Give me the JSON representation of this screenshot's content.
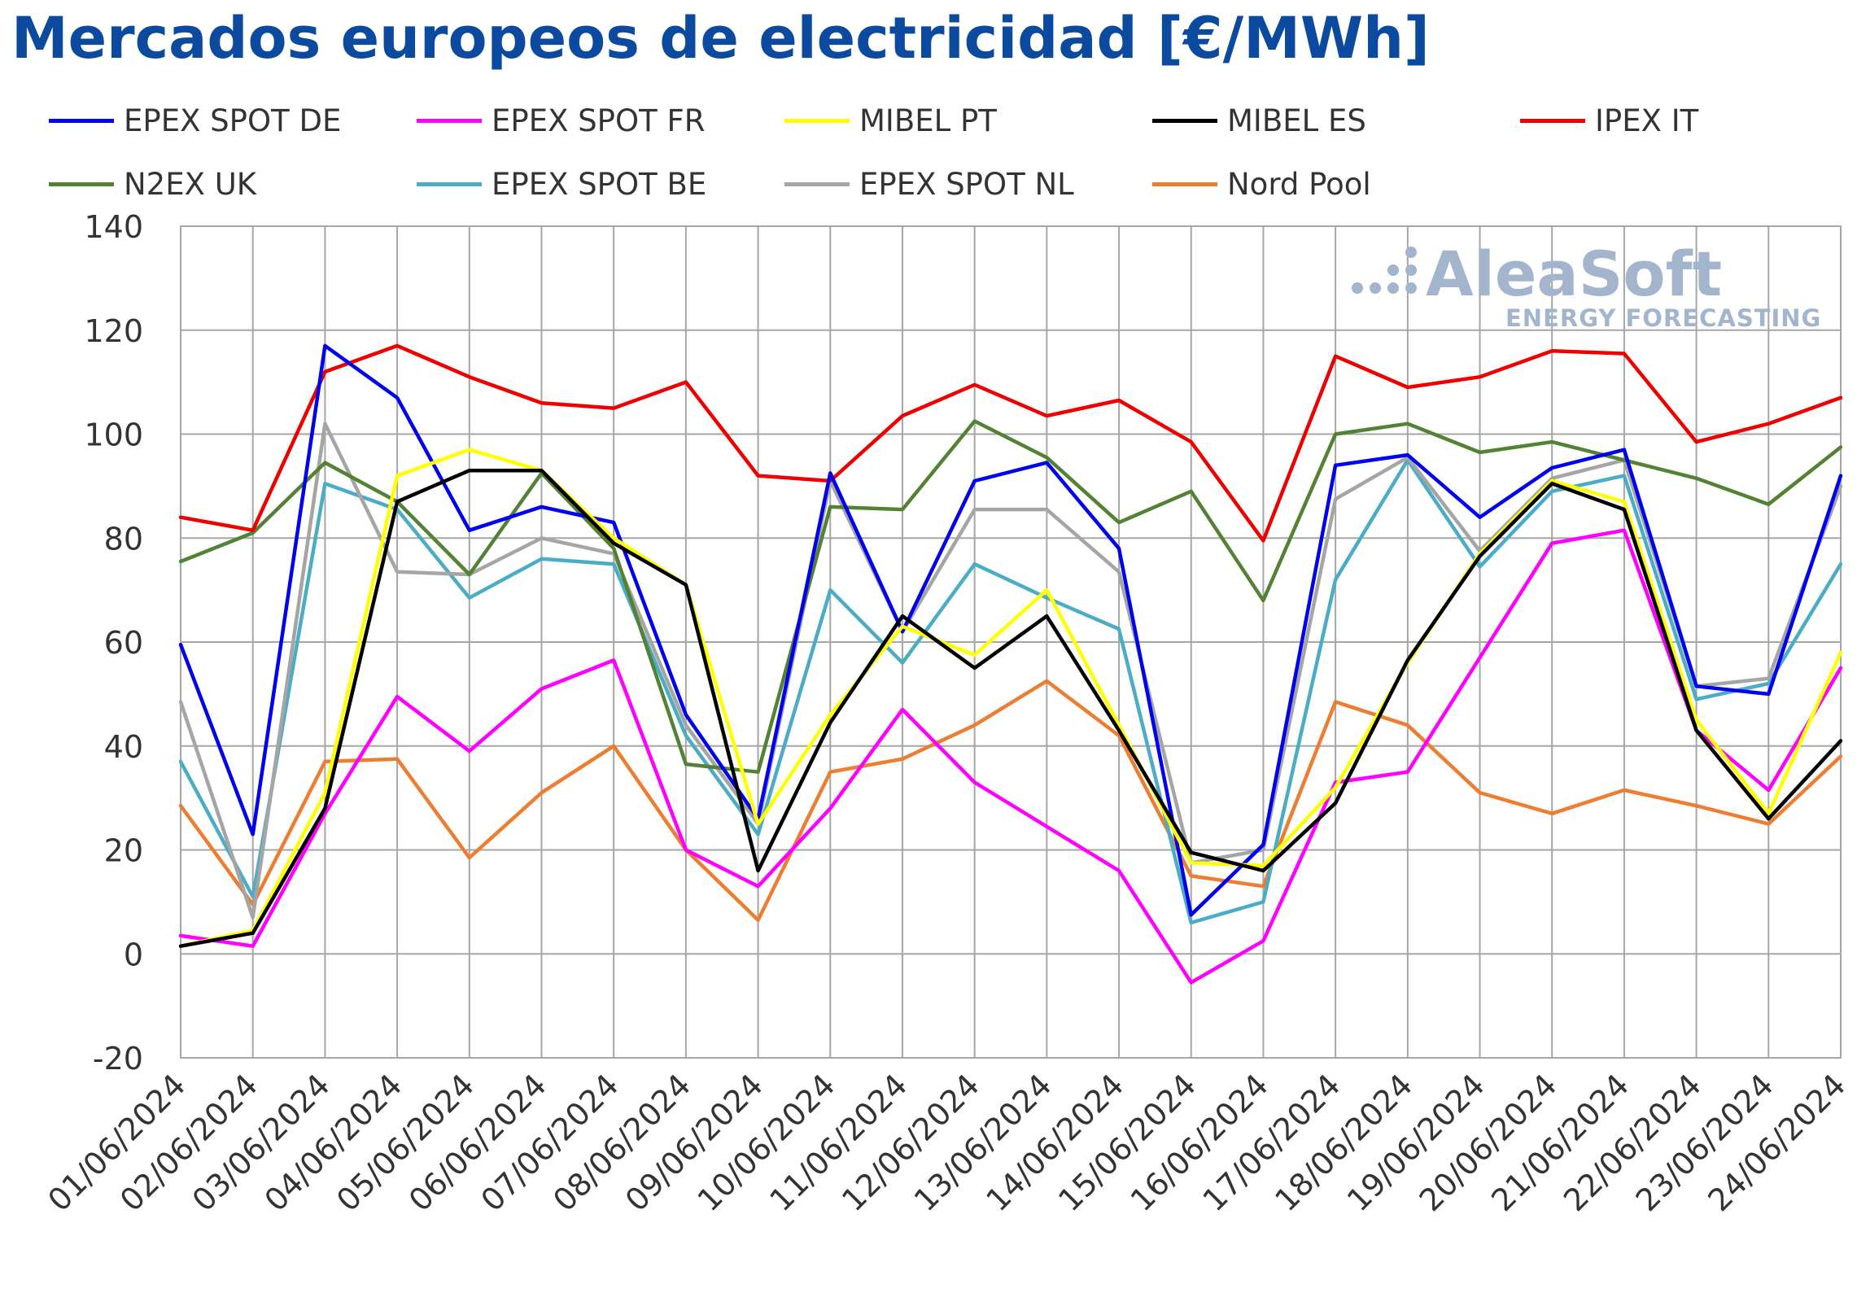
{
  "title": "Mercados europeos de electricidad [€/MWh]",
  "branding": {
    "logo_name": "AleaSoft",
    "logo_tagline": "ENERGY FORECASTING"
  },
  "chart_data": {
    "type": "line",
    "title": "Mercados europeos de electricidad [€/MWh]",
    "xlabel": "",
    "ylabel": "",
    "ylim": [
      -20,
      140
    ],
    "yticks": [
      -20,
      0,
      20,
      40,
      60,
      80,
      100,
      120,
      140
    ],
    "grid": true,
    "legend_position": "top",
    "categories": [
      "01/06/2024",
      "02/06/2024",
      "03/06/2024",
      "04/06/2024",
      "05/06/2024",
      "06/06/2024",
      "07/06/2024",
      "08/06/2024",
      "09/06/2024",
      "10/06/2024",
      "11/06/2024",
      "12/06/2024",
      "13/06/2024",
      "14/06/2024",
      "15/06/2024",
      "16/06/2024",
      "17/06/2024",
      "18/06/2024",
      "19/06/2024",
      "20/06/2024",
      "21/06/2024",
      "22/06/2024",
      "23/06/2024",
      "24/06/2024"
    ],
    "series": [
      {
        "name": "EPEX SPOT DE",
        "color": "#0000ee",
        "values": [
          59.5,
          23,
          117,
          107,
          81.5,
          86,
          83,
          46,
          26,
          92.5,
          62,
          91,
          94.5,
          78,
          7.5,
          21,
          94,
          96,
          84,
          93.5,
          97,
          51.5,
          50,
          92
        ]
      },
      {
        "name": "EPEX SPOT FR",
        "color": "#ff00ff",
        "values": [
          3.5,
          1.5,
          27,
          49.5,
          39,
          51,
          56.5,
          20,
          13,
          28,
          47,
          33,
          24.5,
          16,
          -5.5,
          2.5,
          33,
          35,
          57,
          79,
          81.5,
          43,
          31.5,
          55
        ]
      },
      {
        "name": "MIBEL PT",
        "color": "#ffff00",
        "values": [
          1.5,
          4.5,
          31,
          92,
          97,
          93,
          80,
          71,
          25,
          46,
          63,
          57.5,
          70,
          44,
          17.5,
          17,
          32,
          56,
          77,
          91,
          87,
          45,
          27,
          58
        ]
      },
      {
        "name": "MIBEL ES",
        "color": "#000000",
        "values": [
          1.5,
          4,
          28,
          87,
          93,
          93,
          79,
          71,
          16,
          44.5,
          65,
          55,
          65,
          43,
          19.5,
          16,
          29,
          56.5,
          76.5,
          90.5,
          85.5,
          43,
          26,
          41
        ]
      },
      {
        "name": "IPEX IT",
        "color": "#ee0000",
        "values": [
          84,
          81.5,
          112,
          117,
          111,
          106,
          105,
          110,
          92,
          91,
          103.5,
          109.5,
          103.5,
          106.5,
          98.5,
          79.5,
          115,
          109,
          111,
          116,
          115.5,
          98.5,
          102,
          107
        ]
      },
      {
        "name": "N2EX UK",
        "color": "#548235",
        "values": [
          75.5,
          81,
          94.5,
          87,
          73,
          92.5,
          78,
          36.5,
          35,
          86,
          85.5,
          102.5,
          95.5,
          83,
          89,
          68,
          100,
          102,
          96.5,
          98.5,
          95,
          91.5,
          86.5,
          97.5
        ]
      },
      {
        "name": "EPEX SPOT BE",
        "color": "#4bacc6",
        "values": [
          37,
          11,
          90.5,
          85.5,
          68.5,
          76,
          75,
          42,
          23,
          70,
          56,
          75,
          68.5,
          62.5,
          6,
          10,
          72,
          95,
          74.5,
          89,
          92,
          49,
          52,
          75
        ]
      },
      {
        "name": "EPEX SPOT NL",
        "color": "#a5a5a5",
        "values": [
          48.5,
          7,
          102,
          73.5,
          73,
          80,
          77,
          44,
          25,
          91,
          62,
          85.5,
          85.5,
          73.5,
          17.5,
          20,
          87.5,
          95.5,
          77.5,
          91.5,
          95,
          51.5,
          53,
          90
        ]
      },
      {
        "name": "Nord Pool",
        "color": "#ed7d31",
        "values": [
          28.5,
          9.5,
          37,
          37.5,
          18.5,
          31,
          40,
          20,
          6.5,
          35,
          37.5,
          44,
          52.5,
          42,
          15,
          13,
          48.5,
          44,
          31,
          27,
          31.5,
          28.5,
          25,
          38
        ]
      }
    ]
  }
}
